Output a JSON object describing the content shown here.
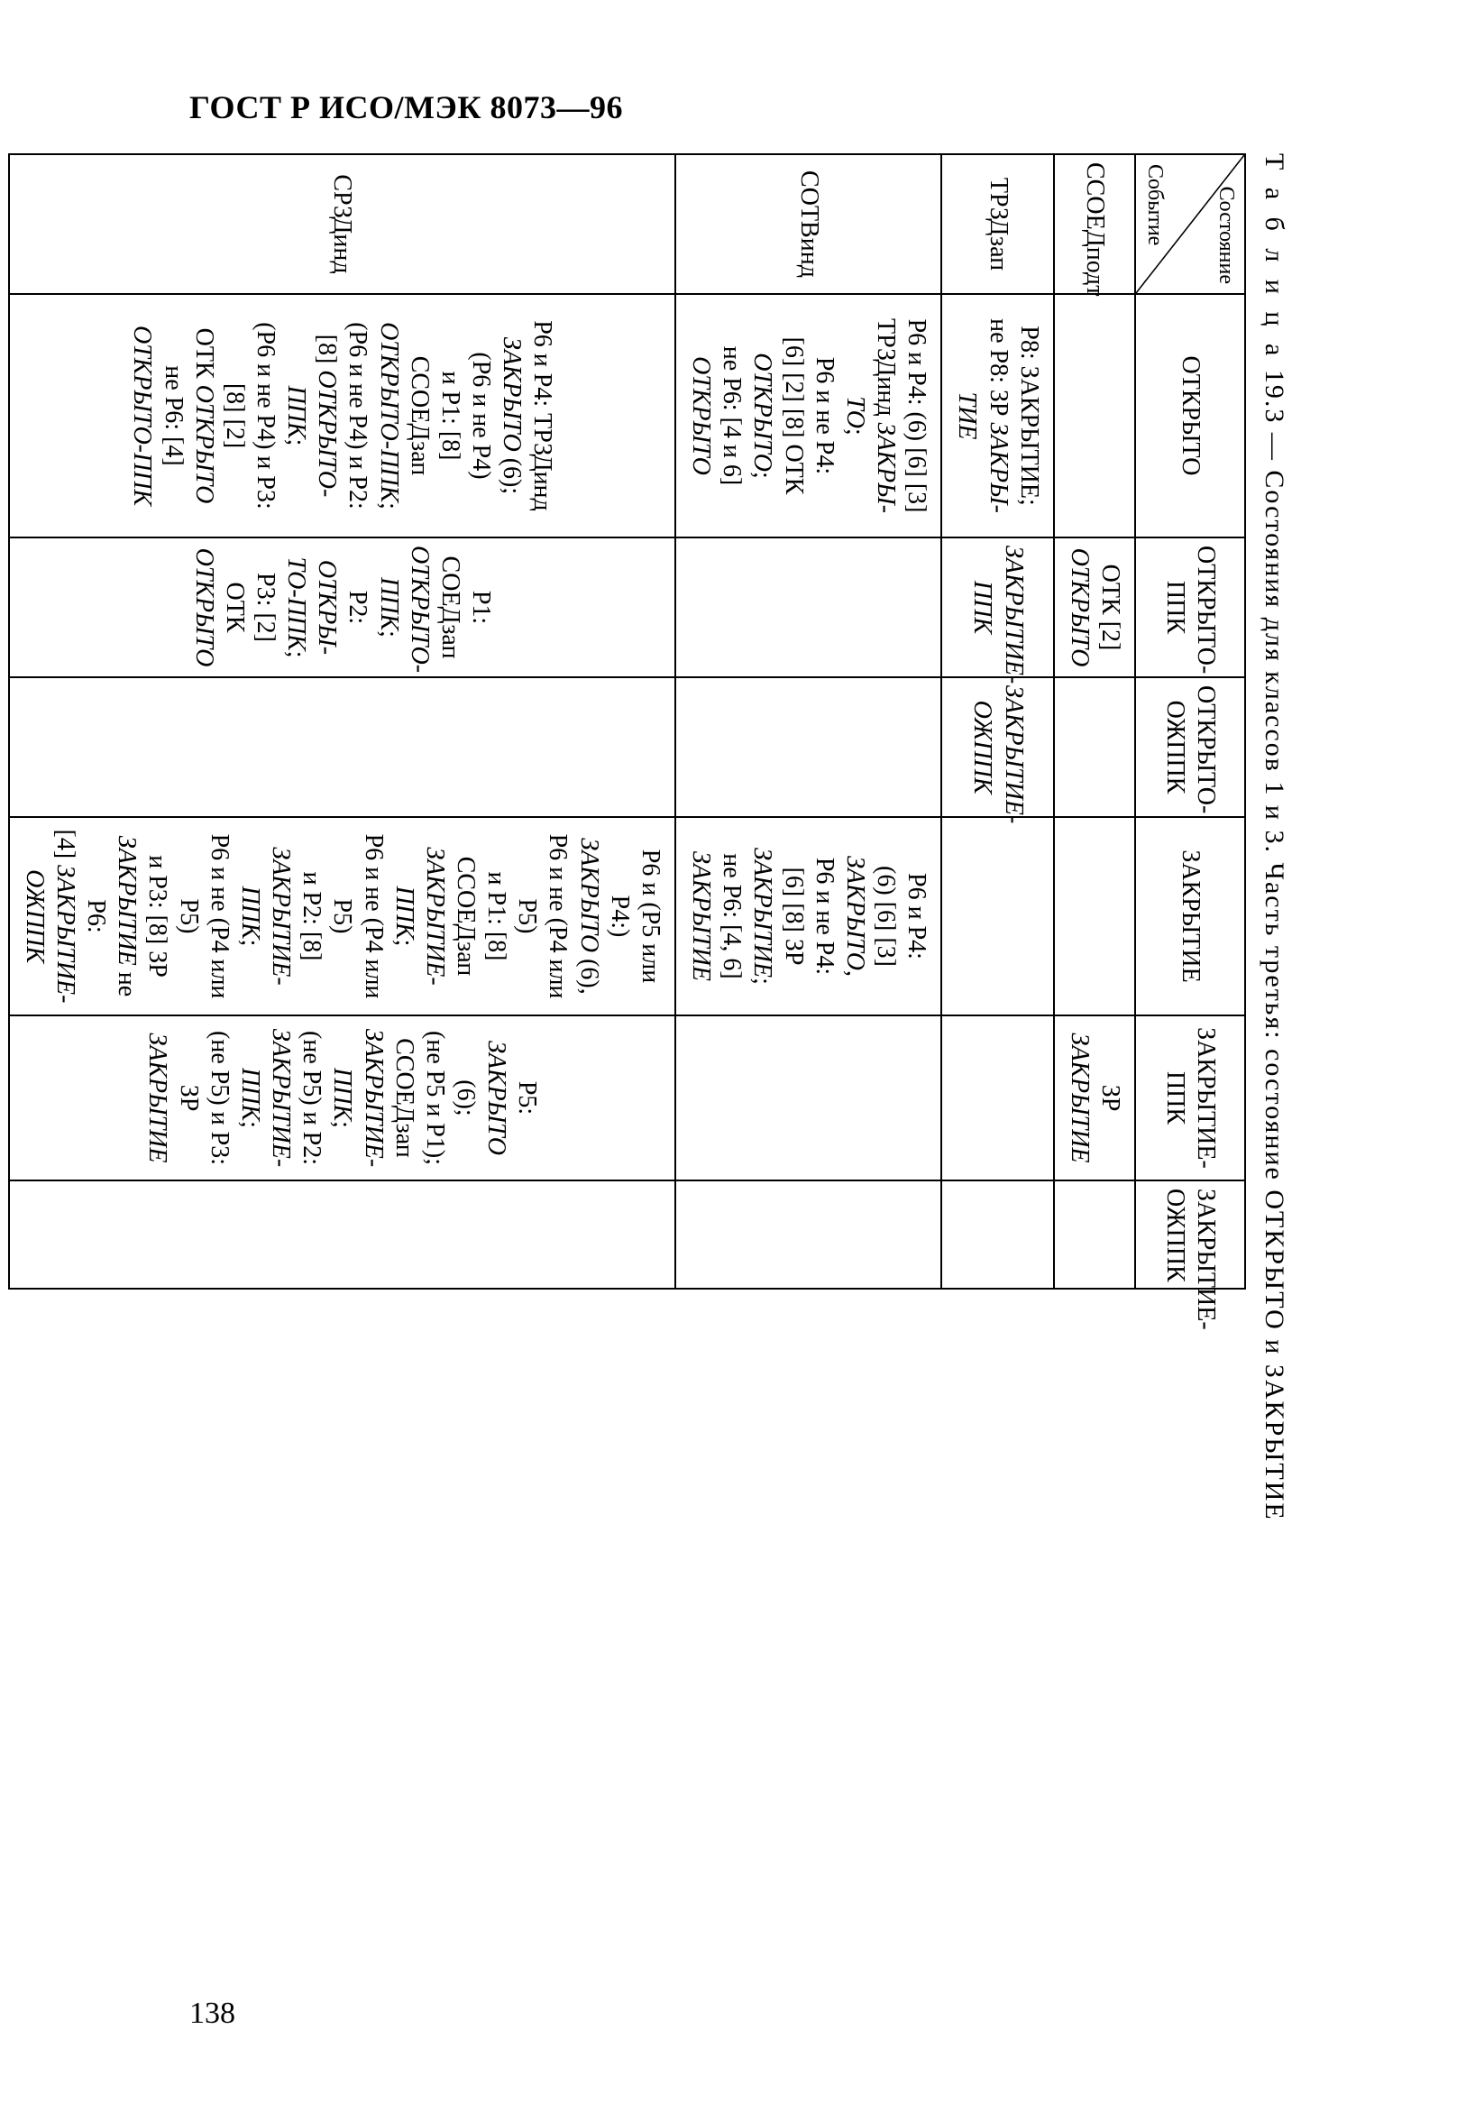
{
  "header": "ГОСТ Р ИСО/МЭК 8073—96",
  "page_number": "138",
  "caption_prefix": "Т а б л и ц а",
  "caption_num": "19.3",
  "caption_dash": "—",
  "caption_rest": "Состояния для классов 1 и 3. Часть третья: состояние ОТКРЫТО и ЗАКРЫТИЕ",
  "diag_top": "Состояние",
  "diag_bottom": "Событие",
  "columns": [
    "ОТКРЫТО",
    "ОТКРЫТО-ППК",
    "ОТКРЫТО-ОЖППК",
    "ЗАКРЫТИЕ",
    "ЗАКРЫТИЕ-ППК",
    "ЗАКРЫТИЕ-ОЖППК"
  ],
  "rows": [
    {
      "event": "ССОЕДподт",
      "cells": [
        "",
        "ОТК [2]\n<i>ОТКРЫТО</i>",
        "",
        "",
        "ЗР <i>ЗАКРЫТИЕ</i>",
        ""
      ]
    },
    {
      "event": "ТРЗДзап",
      "cells": [
        "Р8: ЗАКРЫТИЕ;\nне Р8: ЗР <i>ЗАКРЫ-\nТИЕ</i>",
        "<i>ЗАКРЫТИЕ-\nППК</i>",
        "<i>ЗАКРЫТИЕ-\nОЖППК</i>",
        "",
        "",
        ""
      ]
    },
    {
      "event": "СОТВинд",
      "cells": [
        "Р6 и Р4: (6) [6] [3]\nТРЗДинд <i>ЗАКРЫ-\nТО</i>;\nР6 и не Р4:\n[6] [2] [8] ОТК\n<i>ОТКРЫТО</i>;\nне Р6: [4 и 6]\n<i>ОТКРЫТО</i>",
        "",
        "",
        "Р6 и Р4:\n(6) [6] [3]\n<i>ЗАКРЫТО</i>,\nР6 и не Р4:\n[6] [8] ЗР\n<i>ЗАКРЫТИЕ</i>;\nне Р6: [4, 6]\n<i>ЗАКРЫТИЕ</i>",
        "",
        ""
      ]
    },
    {
      "event": "СРЗДинд",
      "cells": [
        "Р6 и Р4: ТРЗДинд\n<i>ЗАКРЫТО</i> (6);\n(Р6 и не Р4)\nи Р1: [8]\nССОЕДзап\n<i>ОТКРЫТО-ППК</i>;\n(Р6 и не Р4) и Р2:\n[8] <i>ОТКРЫТО-\nППК</i>;\n(Р6 и не Р4) и Р3:\n[8] [2]\nОТК <i>ОТКРЫТО</i>\nне Р6: [4]\n<i>ОТКРЫТО-ППК</i>",
        "Р1: СОЕДзап\n<i>ОТКРЫТО-\nППК</i>;\nР2: <i>ОТКРЫ-\nТО-ППК</i>;\nР3: [2] ОТК\n<i>ОТКРЫТО</i>",
        "",
        "Р6 и (Р5 или Р4:)\n<i>ЗАКРЫТО</i> (6),\nР6 и не (Р4 или Р5)\nи Р1: [8]\nССОЕДзап\n<i>ЗАКРЫТИЕ-ППК</i>;\nР6 и не (Р4 или Р5)\nи Р2: [8]\n<i>ЗАКРЫТИЕ-ППК</i>;\nР6 и не (Р4 или Р5)\nи Р3: [8] ЗР\n<i>ЗАКРЫТИЕ</i> не Р6:\n[4] <i>ЗАКРЫТИЕ-\nОЖППК</i>",
        "Р5: <i>ЗАКРЫТО</i>\n(6);\n(не Р5 и Р1);\nССОЕДзап\n<i>ЗАКРЫТИЕ-\nППК</i>;\n(не Р5) и Р2:\n<i>ЗАКРЫТИЕ-\nППК</i>;\n(не Р5) и Р3:\nЗР <i>ЗАКРЫТИЕ</i>",
        ""
      ]
    }
  ]
}
